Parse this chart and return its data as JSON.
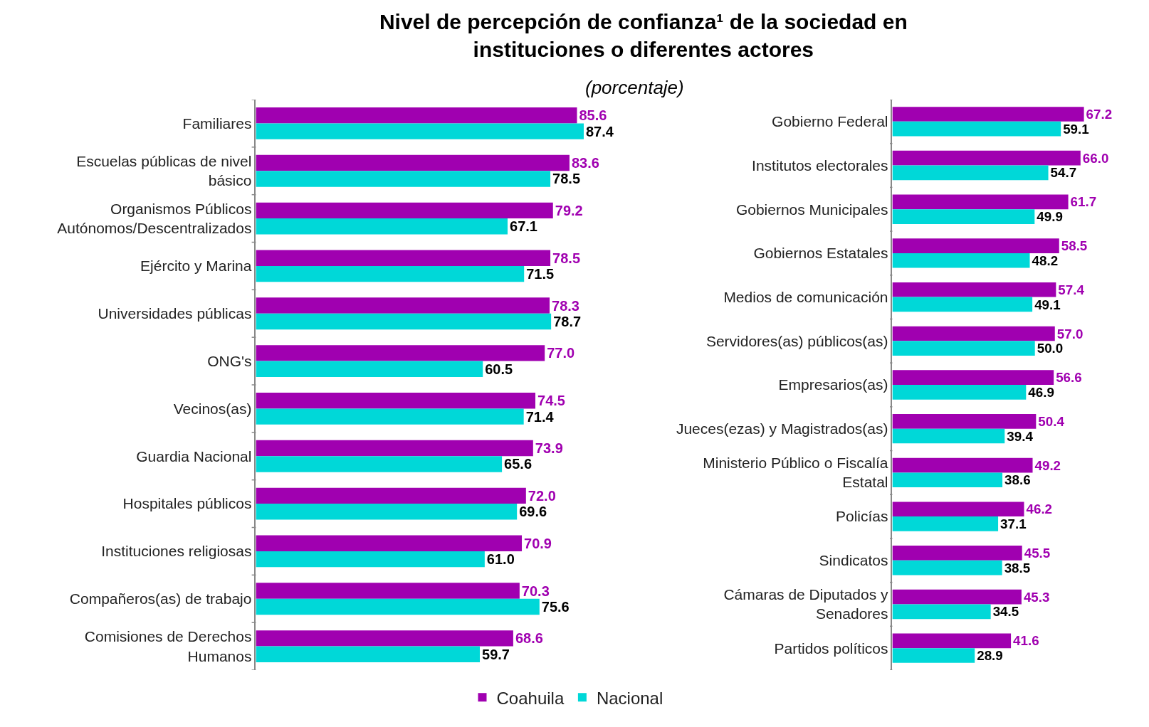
{
  "chart_data": [
    {
      "type": "bar",
      "orientation": "horizontal",
      "title": "Nivel de percepción de confianza¹ de la sociedad en\ninstituciones o diferentes actores",
      "subtitle": "(porcentaje)",
      "legend": "bottom",
      "categories": [
        "Familiares",
        "Escuelas públicas de nivel\nbásico",
        "Organismos Públicos\nAutónomos/Descentralizados",
        "Ejército y Marina",
        "Universidades públicas",
        "ONG's",
        "Vecinos(as)",
        "Guardia Nacional",
        "Hospitales públicos",
        "Instituciones religiosas",
        "Compañeros(as) de trabajo",
        "Comisiones de Derechos\nHumanos"
      ],
      "series": [
        {
          "name": "Coahuila",
          "color": "#a000b0",
          "values": [
            85.6,
            83.6,
            79.2,
            78.5,
            78.3,
            77.0,
            74.5,
            73.9,
            72.0,
            70.9,
            70.3,
            68.6
          ],
          "value_labels": [
            "85.6",
            "83.6",
            "79.2",
            "78.5",
            "78.3",
            "77.0",
            "74.5",
            "73.9",
            "72.0",
            "70.9",
            "70.3",
            "68.6"
          ]
        },
        {
          "name": "Nacional",
          "color": "#00d8d8",
          "values": [
            87.4,
            78.5,
            67.1,
            71.5,
            78.7,
            60.5,
            71.4,
            65.6,
            69.6,
            61.0,
            75.6,
            59.7
          ],
          "value_labels": [
            "87.4",
            "78.5",
            "67.1",
            "71.5",
            "78.7",
            "60.5",
            "71.4",
            "65.6",
            "69.6",
            "61.0",
            "75.6",
            "59.7"
          ]
        }
      ]
    },
    {
      "type": "bar",
      "orientation": "horizontal",
      "categories": [
        "Gobierno Federal",
        "Institutos electorales",
        "Gobiernos Municipales",
        "Gobiernos Estatales",
        "Medios de comunicación",
        "Servidores(as) públicos(as)",
        "Empresarios(as)",
        "Jueces(ezas) y Magistrados(as)",
        "Ministerio Público o Fiscalía\nEstatal",
        "Policías",
        "Sindicatos",
        "Cámaras de Diputados y\nSenadores",
        "Partidos políticos"
      ],
      "series": [
        {
          "name": "Coahuila",
          "color": "#a000b0",
          "values": [
            67.2,
            66.0,
            61.7,
            58.5,
            57.4,
            57.0,
            56.6,
            50.4,
            49.2,
            46.2,
            45.5,
            45.3,
            41.6
          ],
          "value_labels": [
            "67.2",
            "66.0",
            "61.7",
            "58.5",
            "57.4",
            "57.0",
            "56.6",
            "50.4",
            "49.2",
            "46.2",
            "45.5",
            "45.3",
            "41.6"
          ]
        },
        {
          "name": "Nacional",
          "color": "#00d8d8",
          "values": [
            59.1,
            54.7,
            49.9,
            48.2,
            49.1,
            50.0,
            46.9,
            39.4,
            38.6,
            37.1,
            38.5,
            34.5,
            28.9
          ],
          "value_labels": [
            "59.1",
            "54.7",
            "49.9",
            "48.2",
            "49.1",
            "50.0",
            "46.9",
            "39.4",
            "38.6",
            "37.1",
            "38.5",
            "34.5",
            "28.9"
          ]
        }
      ]
    }
  ]
}
